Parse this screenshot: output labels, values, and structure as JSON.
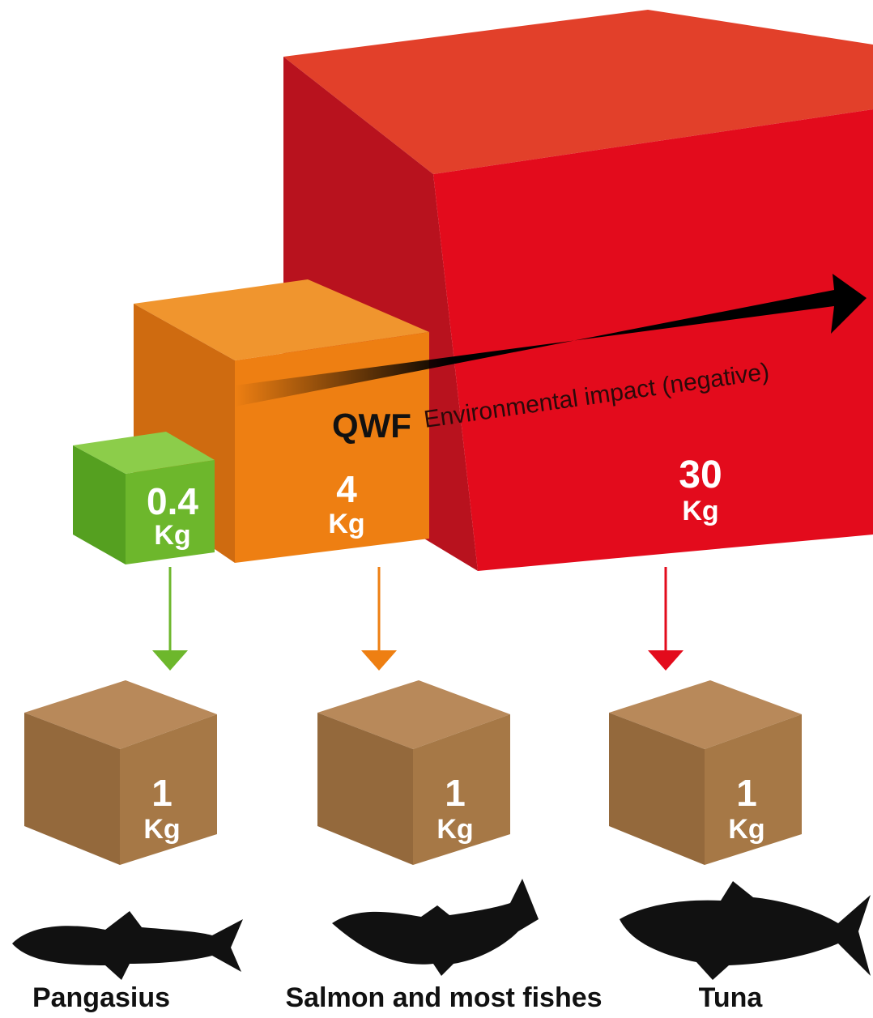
{
  "title": {
    "prefix": "QWF",
    "text": "Environmental impact (negative)"
  },
  "feed_cubes": [
    {
      "amount": "0.4",
      "unit": "Kg"
    },
    {
      "amount": "4",
      "unit": "Kg"
    },
    {
      "amount": "30",
      "unit": "Kg"
    }
  ],
  "product_cubes": [
    {
      "amount": "1",
      "unit": "Kg"
    },
    {
      "amount": "1",
      "unit": "Kg"
    },
    {
      "amount": "1",
      "unit": "Kg"
    }
  ],
  "fishes": [
    {
      "label": "Pangasius"
    },
    {
      "label": "Salmon and most fishes"
    },
    {
      "label": "Tuna"
    }
  ]
}
